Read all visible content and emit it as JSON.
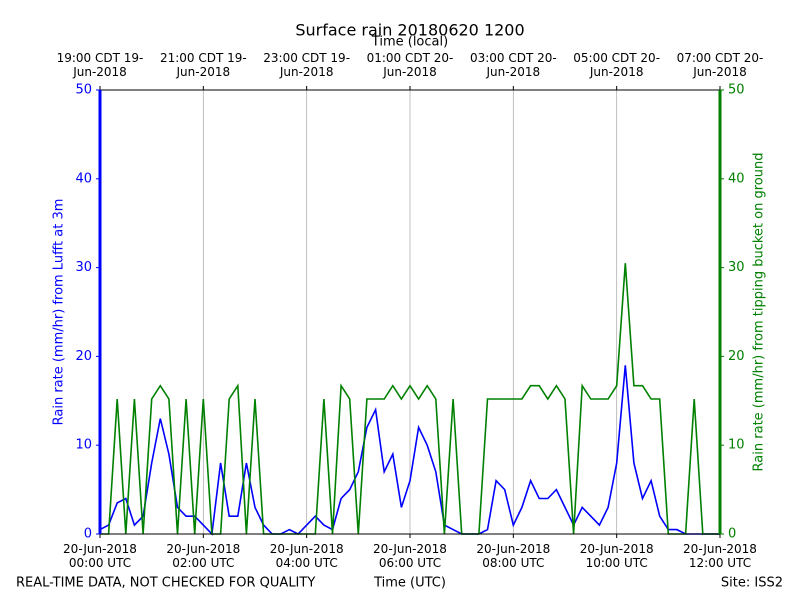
{
  "chart_data": {
    "type": "line",
    "title": "Surface rain 20180620 1200",
    "x_label": "Time (UTC)",
    "x2_label": "Time (local)",
    "y_label": "Rain rate (mm/hr) from Lufft at 3m",
    "y2_label": "Rain rate (mm/hr) from tipping bucket on ground",
    "footer_left": "REAL-TIME DATA, NOT CHECKED FOR QUALITY",
    "footer_right": "Site: ISS2",
    "x": [
      "2018-06-20 00:00",
      "2018-06-20 00:10",
      "2018-06-20 00:20",
      "2018-06-20 00:30",
      "2018-06-20 00:40",
      "2018-06-20 00:50",
      "2018-06-20 01:00",
      "2018-06-20 01:10",
      "2018-06-20 01:20",
      "2018-06-20 01:30",
      "2018-06-20 01:40",
      "2018-06-20 01:50",
      "2018-06-20 02:00",
      "2018-06-20 02:10",
      "2018-06-20 02:20",
      "2018-06-20 02:30",
      "2018-06-20 02:40",
      "2018-06-20 02:50",
      "2018-06-20 03:00",
      "2018-06-20 03:10",
      "2018-06-20 03:20",
      "2018-06-20 03:30",
      "2018-06-20 03:40",
      "2018-06-20 03:50",
      "2018-06-20 04:00",
      "2018-06-20 04:10",
      "2018-06-20 04:20",
      "2018-06-20 04:30",
      "2018-06-20 04:40",
      "2018-06-20 04:50",
      "2018-06-20 05:00",
      "2018-06-20 05:10",
      "2018-06-20 05:20",
      "2018-06-20 05:30",
      "2018-06-20 05:40",
      "2018-06-20 05:50",
      "2018-06-20 06:00",
      "2018-06-20 06:10",
      "2018-06-20 06:20",
      "2018-06-20 06:30",
      "2018-06-20 06:40",
      "2018-06-20 06:50",
      "2018-06-20 07:00",
      "2018-06-20 07:10",
      "2018-06-20 07:20",
      "2018-06-20 07:30",
      "2018-06-20 07:40",
      "2018-06-20 07:50",
      "2018-06-20 08:00",
      "2018-06-20 08:10",
      "2018-06-20 08:20",
      "2018-06-20 08:30",
      "2018-06-20 08:40",
      "2018-06-20 08:50",
      "2018-06-20 09:00",
      "2018-06-20 09:10",
      "2018-06-20 09:20",
      "2018-06-20 09:30",
      "2018-06-20 09:40",
      "2018-06-20 09:50",
      "2018-06-20 10:00",
      "2018-06-20 10:10",
      "2018-06-20 10:20",
      "2018-06-20 10:30",
      "2018-06-20 10:40",
      "2018-06-20 10:50",
      "2018-06-20 11:00",
      "2018-06-20 11:10",
      "2018-06-20 11:20",
      "2018-06-20 11:30",
      "2018-06-20 11:40",
      "2018-06-20 11:50",
      "2018-06-20 12:00"
    ],
    "series": [
      {
        "name": "Lufft at 3m",
        "color": "#0000ff",
        "axis": "y",
        "values": [
          0.5,
          1,
          3.5,
          4,
          1,
          2,
          8,
          13,
          9,
          3,
          2,
          2,
          1,
          0,
          8,
          2,
          2,
          8,
          3,
          1,
          0,
          0,
          0.5,
          0,
          1,
          2,
          1,
          0.5,
          4,
          5,
          7,
          12,
          14,
          7,
          9,
          3,
          6,
          12,
          10,
          7,
          1,
          0.5,
          0,
          0,
          0,
          0.5,
          6,
          5,
          1,
          3,
          6,
          4,
          4,
          5,
          3,
          1,
          3,
          2,
          1,
          3,
          8,
          19,
          8,
          4,
          6,
          2,
          0.5,
          0.5,
          0,
          0,
          0,
          0,
          0
        ]
      },
      {
        "name": "tipping bucket on ground",
        "color": "#008000",
        "axis": "y2",
        "values": [
          0,
          0,
          15.2,
          0,
          15.2,
          0,
          15.2,
          16.7,
          15.2,
          0,
          15.2,
          0,
          15.2,
          0,
          0,
          15.2,
          16.7,
          0,
          15.2,
          0,
          0,
          0,
          0,
          0,
          0,
          0,
          15.2,
          0,
          16.7,
          15.2,
          0,
          15.2,
          15.2,
          15.2,
          16.7,
          15.2,
          16.7,
          15.2,
          16.7,
          15.2,
          0,
          15.2,
          0,
          0,
          0,
          15.2,
          15.2,
          15.2,
          15.2,
          15.2,
          16.7,
          16.7,
          15.2,
          16.7,
          15.2,
          0,
          16.7,
          15.2,
          15.2,
          15.2,
          16.7,
          30.5,
          16.7,
          16.7,
          15.2,
          15.2,
          0,
          0,
          0,
          15.2,
          0,
          0,
          0
        ]
      }
    ],
    "xlim": [
      "2018-06-20 00:00",
      "2018-06-20 12:00"
    ],
    "xticks": [
      {
        "value": "2018-06-20 00:00",
        "label": "20-Jun-2018 00:00 UTC"
      },
      {
        "value": "2018-06-20 02:00",
        "label": "20-Jun-2018 02:00 UTC"
      },
      {
        "value": "2018-06-20 04:00",
        "label": "20-Jun-2018 04:00 UTC"
      },
      {
        "value": "2018-06-20 06:00",
        "label": "20-Jun-2018 06:00 UTC"
      },
      {
        "value": "2018-06-20 08:00",
        "label": "20-Jun-2018 08:00 UTC"
      },
      {
        "value": "2018-06-20 10:00",
        "label": "20-Jun-2018 10:00 UTC"
      },
      {
        "value": "2018-06-20 12:00",
        "label": "20-Jun-2018 12:00 UTC"
      }
    ],
    "x2ticks": [
      {
        "value": "2018-06-20 00:00",
        "label": "19:00 CDT 19-Jun-2018"
      },
      {
        "value": "2018-06-20 02:00",
        "label": "21:00 CDT 19-Jun-2018"
      },
      {
        "value": "2018-06-20 04:00",
        "label": "23:00 CDT 19-Jun-2018"
      },
      {
        "value": "2018-06-20 06:00",
        "label": "01:00 CDT 20-Jun-2018"
      },
      {
        "value": "2018-06-20 08:00",
        "label": "03:00 CDT 20-Jun-2018"
      },
      {
        "value": "2018-06-20 10:00",
        "label": "05:00 CDT 20-Jun-2018"
      },
      {
        "value": "2018-06-20 12:00",
        "label": "07:00 CDT 20-Jun-2018"
      }
    ],
    "ylim": [
      0,
      50
    ],
    "yticks": [
      0,
      10,
      20,
      30,
      40,
      50
    ],
    "y2lim": [
      0,
      50
    ],
    "y2ticks": [
      0,
      10,
      20,
      30,
      40,
      50
    ],
    "grid": "x"
  }
}
